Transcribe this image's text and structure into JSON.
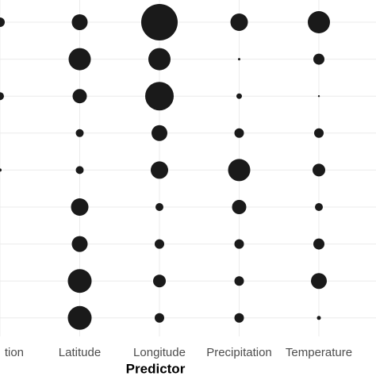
{
  "chart_data": {
    "type": "bubble",
    "x_label": "Predictor",
    "categories": [
      "tion",
      "Latitude",
      "Longitude",
      "Precipitation",
      "Temperature"
    ],
    "rows": [
      null,
      null,
      null,
      null,
      null,
      null,
      null,
      null,
      null
    ],
    "sizes": [
      [
        6,
        null,
        5,
        null,
        2,
        null,
        null,
        null,
        null
      ],
      [
        10,
        14,
        9,
        5,
        5,
        11,
        10,
        15,
        15
      ],
      [
        23,
        14,
        18,
        10,
        11,
        5,
        6,
        8,
        6
      ],
      [
        11,
        1.5,
        3.5,
        6,
        14,
        9,
        6,
        6,
        6
      ],
      [
        14,
        7,
        1.2,
        6,
        8,
        5,
        7,
        10,
        2.5
      ]
    ],
    "color": "#1a1a1a",
    "grid": true
  }
}
